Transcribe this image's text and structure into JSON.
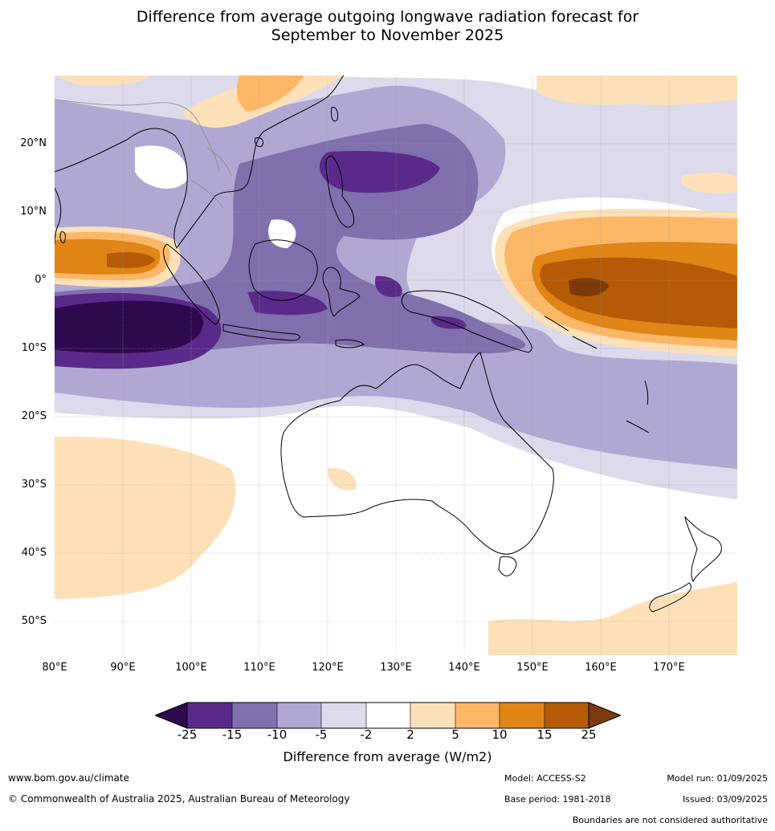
{
  "title_line1": "Difference from average outgoing longwave radiation forecast for",
  "title_line2": "September to November 2025",
  "lat_labels": [
    "20°N",
    "10°N",
    "0°",
    "10°S",
    "20°S",
    "30°S",
    "40°S",
    "50°S"
  ],
  "lon_labels": [
    "80°E",
    "90°E",
    "100°E",
    "110°E",
    "120°E",
    "130°E",
    "140°E",
    "150°E",
    "160°E",
    "170°E"
  ],
  "colorbar": {
    "ticks": [
      "-25",
      "-15",
      "-10",
      "-5",
      "-2",
      "2",
      "5",
      "10",
      "15",
      "25"
    ],
    "colors": [
      "#2d0a4e",
      "#5a2a8a",
      "#8070ad",
      "#b0a8d2",
      "#dcdaeb",
      "#ffffff",
      "#fde0b8",
      "#fbb766",
      "#e08516",
      "#b55a06",
      "#7c3a0a"
    ],
    "title": "Difference from average (W/m2)"
  },
  "footer": {
    "website": "www.bom.gov.au/climate",
    "copyright": "© Commonwealth of Australia 2025, Australian Bureau of Meteorology",
    "model": "Model: ACCESS-S2",
    "base_period": "Base period: 1981-2018",
    "model_run": "Model run: 01/09/2025",
    "issued": "Issued: 03/09/2025",
    "disclaimer": "Boundaries are not considered authoritative"
  }
}
